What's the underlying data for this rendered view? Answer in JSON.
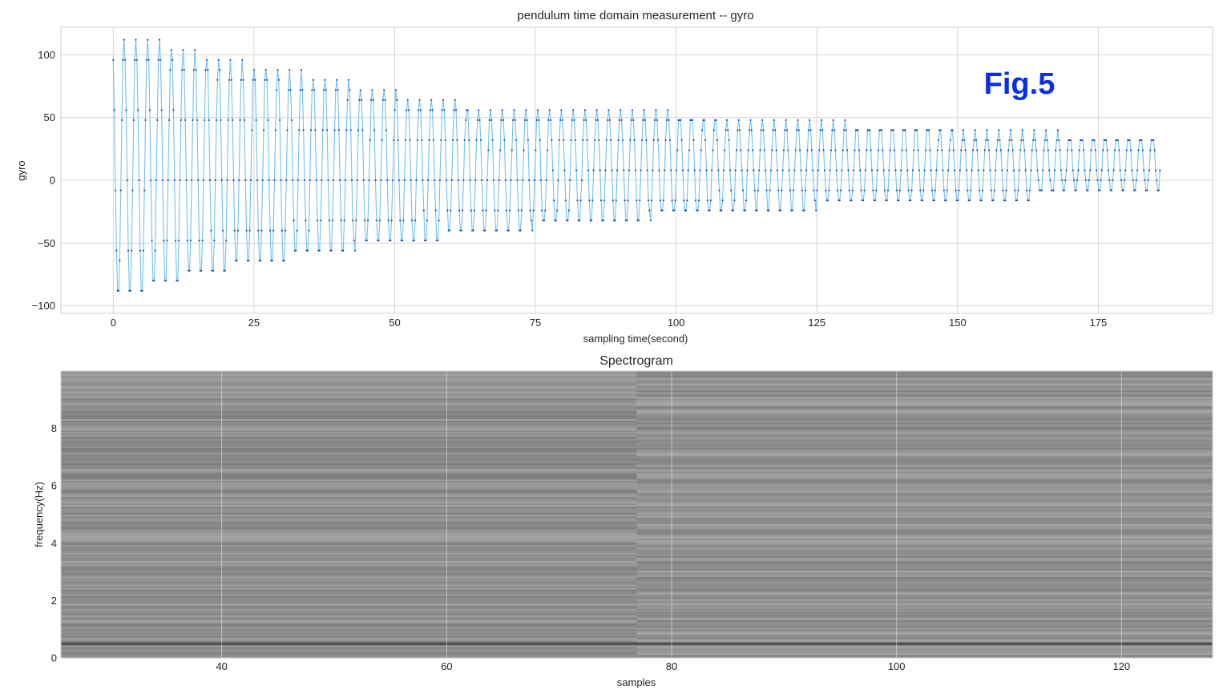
{
  "chart_data": [
    {
      "type": "line",
      "title": "pendulum time domain measurement -- gyro",
      "xlabel": "sampling time(second)",
      "ylabel": "gyro",
      "xlim": [
        -9.3,
        195.3
      ],
      "ylim": [
        -106,
        122
      ],
      "xticks": [
        0,
        25,
        50,
        75,
        100,
        125,
        150,
        175
      ],
      "yticks": [
        -100,
        -50,
        0,
        50,
        100
      ],
      "grid": true,
      "line_color": "#74c0f0",
      "marker_color": "#1f4fa8",
      "annotation": {
        "text": "Fig.5",
        "color": "#0a2ee6"
      },
      "series": [
        {
          "x_start": 0,
          "x_end": 186,
          "oscillation_period_s": 2.1,
          "quantization_step": 8,
          "start_value": 96,
          "end_value": 8,
          "envelope": [
            {
              "x": 0,
              "max": 112,
              "min": -96
            },
            {
              "x": 6,
              "max": 112,
              "min": -88
            },
            {
              "x": 12,
              "max": 104,
              "min": -80
            },
            {
              "x": 20,
              "max": 96,
              "min": -72
            },
            {
              "x": 30,
              "max": 88,
              "min": -64
            },
            {
              "x": 40,
              "max": 80,
              "min": -56
            },
            {
              "x": 55,
              "max": 64,
              "min": -48
            },
            {
              "x": 70,
              "max": 56,
              "min": -40
            },
            {
              "x": 88,
              "max": 56,
              "min": -32
            },
            {
              "x": 112,
              "max": 48,
              "min": -24
            },
            {
              "x": 150,
              "max": 40,
              "min": -16
            },
            {
              "x": 186,
              "max": 32,
              "min": -8
            }
          ]
        }
      ]
    },
    {
      "type": "heatmap",
      "title": "Spectrogram",
      "xlabel": "samples",
      "ylabel": "frequency(Hz)",
      "xlim": [
        25.7,
        128.1
      ],
      "ylim": [
        0,
        10
      ],
      "xticks": [
        40,
        60,
        80,
        100,
        120
      ],
      "yticks": [
        0,
        2,
        4,
        6,
        8
      ],
      "colormap": "gray",
      "segments": [
        {
          "x_start": 25.7,
          "x_end": 76.9
        },
        {
          "x_start": 76.9,
          "x_end": 128.1
        }
      ],
      "dominant_frequency_hz": 0.48
    }
  ]
}
